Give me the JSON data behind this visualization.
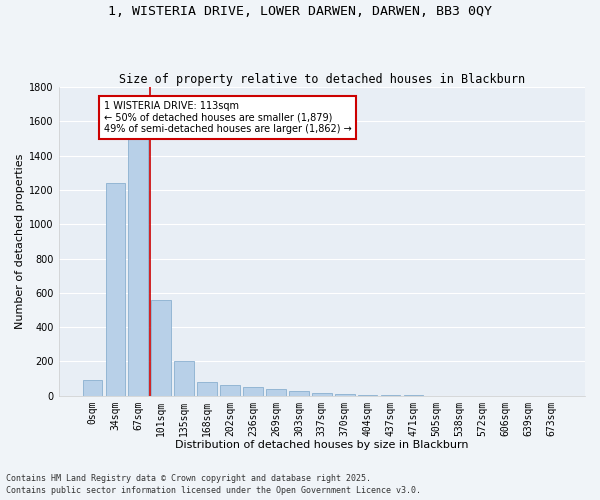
{
  "title_line1": "1, WISTERIA DRIVE, LOWER DARWEN, DARWEN, BB3 0QY",
  "title_line2": "Size of property relative to detached houses in Blackburn",
  "xlabel": "Distribution of detached houses by size in Blackburn",
  "ylabel": "Number of detached properties",
  "bar_color": "#b8d0e8",
  "bar_edge_color": "#8ab0d0",
  "bg_color": "#e8eef5",
  "grid_color": "#ffffff",
  "categories": [
    "0sqm",
    "34sqm",
    "67sqm",
    "101sqm",
    "135sqm",
    "168sqm",
    "202sqm",
    "236sqm",
    "269sqm",
    "303sqm",
    "337sqm",
    "370sqm",
    "404sqm",
    "437sqm",
    "471sqm",
    "505sqm",
    "538sqm",
    "572sqm",
    "606sqm",
    "639sqm",
    "673sqm"
  ],
  "values": [
    90,
    1240,
    1510,
    560,
    205,
    80,
    62,
    52,
    38,
    28,
    18,
    12,
    7,
    4,
    2,
    1,
    0,
    0,
    0,
    0,
    0
  ],
  "red_line_x": 2.5,
  "annotation_text": "1 WISTERIA DRIVE: 113sqm\n← 50% of detached houses are smaller (1,879)\n49% of semi-detached houses are larger (1,862) →",
  "annotation_box_color": "#ffffff",
  "annotation_border_color": "#cc0000",
  "ylim": [
    0,
    1800
  ],
  "yticks": [
    0,
    200,
    400,
    600,
    800,
    1000,
    1200,
    1400,
    1600,
    1800
  ],
  "footer_line1": "Contains HM Land Registry data © Crown copyright and database right 2025.",
  "footer_line2": "Contains public sector information licensed under the Open Government Licence v3.0.",
  "title_fontsize": 9.5,
  "subtitle_fontsize": 8.5,
  "axis_label_fontsize": 8,
  "tick_fontsize": 7,
  "annotation_fontsize": 7,
  "footer_fontsize": 6
}
